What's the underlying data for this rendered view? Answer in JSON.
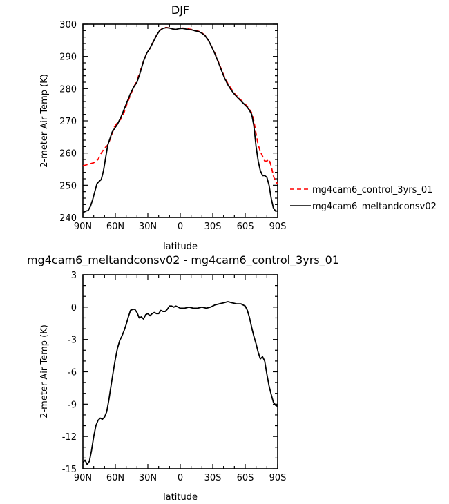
{
  "chart_data": [
    {
      "type": "line",
      "title": "DJF",
      "xlabel": "latitude",
      "ylabel": "2-meter Air Temp (K)",
      "xlim": [
        90,
        -90
      ],
      "ylim": [
        240,
        300
      ],
      "x_ticks": [
        90,
        60,
        30,
        0,
        -30,
        -60,
        -90
      ],
      "x_tick_labels": [
        "90N",
        "60N",
        "30N",
        "0",
        "30S",
        "60S",
        "90S"
      ],
      "y_ticks": [
        240,
        250,
        260,
        270,
        280,
        290,
        300
      ],
      "y_tick_labels": [
        "240",
        "250",
        "260",
        "270",
        "280",
        "290",
        "300"
      ],
      "legend_position": "right",
      "series": [
        {
          "name": "mg4cam6_control_3yrs_01",
          "color": "#ff0000",
          "dash": "dashed",
          "x": [
            90,
            85,
            80,
            76,
            73,
            70,
            67,
            64,
            61,
            58,
            55,
            52,
            49,
            46,
            43,
            40,
            37,
            34,
            31,
            28,
            25,
            22,
            19,
            16,
            13,
            10,
            7,
            4,
            1,
            -2,
            -5,
            -8,
            -11,
            -14,
            -17,
            -20,
            -23,
            -26,
            -29,
            -32,
            -35,
            -38,
            -41,
            -44,
            -47,
            -50,
            -53,
            -56,
            -59,
            -62,
            -64,
            -66,
            -68,
            -70,
            -72,
            -74,
            -76,
            -78,
            -80,
            -82,
            -84,
            -86,
            -88,
            -90
          ],
          "y": [
            256,
            256.5,
            257,
            258,
            260,
            261.5,
            262.5,
            265,
            268,
            269.5,
            270.5,
            272.5,
            275.5,
            278,
            280.5,
            282.5,
            285.5,
            288.5,
            291,
            292.5,
            294.5,
            296.5,
            298,
            298.8,
            299,
            298.8,
            298.5,
            298.3,
            298.6,
            298.8,
            298.7,
            298.5,
            298.3,
            298,
            297.8,
            297.3,
            296.5,
            295,
            293,
            291,
            288.5,
            286,
            283.5,
            281.5,
            280,
            278.5,
            277.5,
            276.5,
            275.5,
            274.5,
            273.5,
            272.5,
            270,
            266,
            262.5,
            260.5,
            259,
            257.5,
            257.5,
            258,
            256,
            253,
            251,
            250.5
          ]
        },
        {
          "name": "mg4cam6_meltandconsv02",
          "color": "#000000",
          "dash": "solid",
          "x": [
            90,
            87,
            85,
            83,
            81,
            79,
            77,
            75,
            73,
            71,
            69,
            67,
            65,
            63,
            61,
            58,
            55,
            52,
            49,
            46,
            43,
            40,
            37,
            34,
            31,
            28,
            25,
            22,
            19,
            16,
            13,
            10,
            7,
            4,
            1,
            -2,
            -5,
            -8,
            -11,
            -14,
            -17,
            -20,
            -23,
            -26,
            -29,
            -32,
            -35,
            -38,
            -41,
            -44,
            -47,
            -50,
            -53,
            -56,
            -59,
            -62,
            -64,
            -66,
            -68,
            -70,
            -72,
            -74,
            -76,
            -78,
            -80,
            -82,
            -84,
            -86,
            -88,
            -90
          ],
          "y": [
            241.5,
            242,
            242.2,
            243.5,
            245.5,
            248,
            250.5,
            251.2,
            251.8,
            254.5,
            258.5,
            262.5,
            264.5,
            266.5,
            267.5,
            269,
            271,
            273.5,
            276,
            278.5,
            280.5,
            282,
            285,
            288.5,
            291,
            292.5,
            294.5,
            296.5,
            298,
            298.7,
            298.9,
            298.8,
            298.5,
            298.4,
            298.6,
            298.7,
            298.5,
            298.3,
            298.2,
            297.9,
            297.7,
            297.2,
            296.4,
            295,
            293,
            290.8,
            288.3,
            285.7,
            283.2,
            281.2,
            279.6,
            278.3,
            277.2,
            276.2,
            275.2,
            274.2,
            273.2,
            272,
            268.5,
            262,
            257.5,
            254.5,
            253,
            253,
            252.5,
            250,
            246,
            243,
            242,
            242
          ]
        }
      ]
    },
    {
      "type": "line",
      "title": "mg4cam6_meltandconsv02 - mg4cam6_control_3yrs_01",
      "xlabel": "latitude",
      "ylabel": "2-meter Air Temp (K)",
      "xlim": [
        90,
        -90
      ],
      "ylim": [
        -15,
        3
      ],
      "x_ticks": [
        90,
        60,
        30,
        0,
        -30,
        -60,
        -90
      ],
      "x_tick_labels": [
        "90N",
        "60N",
        "30N",
        "0",
        "30S",
        "60S",
        "90S"
      ],
      "y_ticks": [
        -15,
        -12,
        -9,
        -6,
        -3,
        0,
        3
      ],
      "y_tick_labels": [
        "-15",
        "-12",
        "-9",
        "-6",
        "-3",
        "0",
        "3"
      ],
      "series": [
        {
          "color": "#000000",
          "dash": "solid",
          "x": [
            90,
            88,
            86,
            84,
            82,
            80,
            78,
            76,
            74,
            72,
            70,
            68,
            66,
            64,
            62,
            60,
            58,
            56,
            54,
            52,
            50,
            48,
            46,
            44,
            42,
            40,
            38,
            36,
            34,
            32,
            30,
            28,
            26,
            24,
            22,
            20,
            18,
            16,
            14,
            12,
            10,
            8,
            6,
            4,
            2,
            0,
            -4,
            -8,
            -12,
            -16,
            -20,
            -24,
            -28,
            -32,
            -36,
            -40,
            -44,
            -48,
            -52,
            -56,
            -60,
            -62,
            -64,
            -66,
            -68,
            -70,
            -72,
            -74,
            -76,
            -78,
            -80,
            -82,
            -84,
            -86,
            -88,
            -90
          ],
          "y": [
            -14.4,
            -14.2,
            -14.6,
            -14.3,
            -13.3,
            -12,
            -11,
            -10.5,
            -10.3,
            -10.4,
            -10.2,
            -9.7,
            -8.6,
            -7.3,
            -6,
            -4.8,
            -3.8,
            -3.1,
            -2.7,
            -2.2,
            -1.6,
            -0.9,
            -0.3,
            -0.2,
            -0.2,
            -0.5,
            -1,
            -0.9,
            -1.1,
            -0.7,
            -0.6,
            -0.8,
            -0.6,
            -0.5,
            -0.6,
            -0.6,
            -0.3,
            -0.4,
            -0.4,
            -0.2,
            0.1,
            0.1,
            0.0,
            0.1,
            0.0,
            -0.1,
            -0.1,
            0.0,
            -0.1,
            -0.1,
            0.0,
            -0.1,
            0.0,
            0.2,
            0.3,
            0.4,
            0.5,
            0.4,
            0.3,
            0.3,
            0.1,
            -0.3,
            -1.0,
            -1.9,
            -2.7,
            -3.4,
            -4.2,
            -4.8,
            -4.6,
            -5.0,
            -6.2,
            -7.3,
            -8.1,
            -8.8,
            -9.1,
            -9.2
          ]
        }
      ]
    }
  ]
}
